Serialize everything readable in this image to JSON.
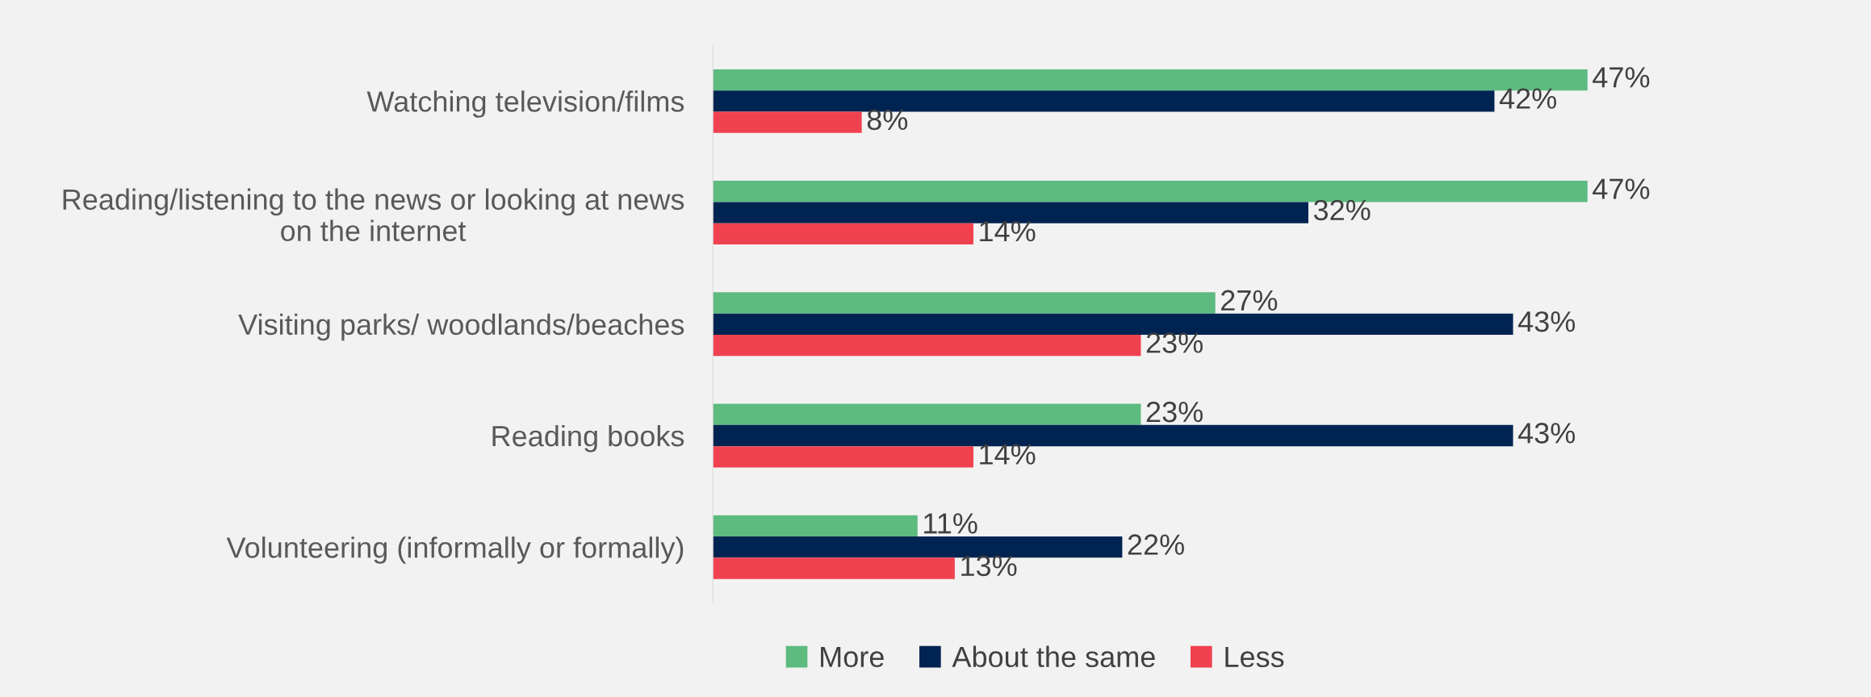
{
  "chart_data": {
    "type": "bar",
    "orientation": "horizontal",
    "categories": [
      "Watching television/films",
      "Reading/listening to the news or looking at news\non the internet",
      "Visiting parks/ woodlands/beaches",
      "Reading books",
      "Volunteering (informally or formally)"
    ],
    "series": [
      {
        "name": "More",
        "color": "#5dbb7f",
        "values": [
          47,
          47,
          27,
          23,
          11
        ],
        "value_labels": [
          "47%",
          "47%",
          "27%",
          "23%",
          "11%"
        ]
      },
      {
        "name": "About the same",
        "color": "#002451",
        "values": [
          42,
          32,
          43,
          43,
          22
        ],
        "value_labels": [
          "42%",
          "32%",
          "43%",
          "43%",
          "22%"
        ]
      },
      {
        "name": "Less",
        "color": "#f04150",
        "values": [
          8,
          14,
          23,
          14,
          13
        ],
        "value_labels": [
          "8%",
          "14%",
          "23%",
          "14%",
          "13%"
        ]
      }
    ],
    "tick_labels": "y",
    "grid": false,
    "legend": "bottom"
  }
}
